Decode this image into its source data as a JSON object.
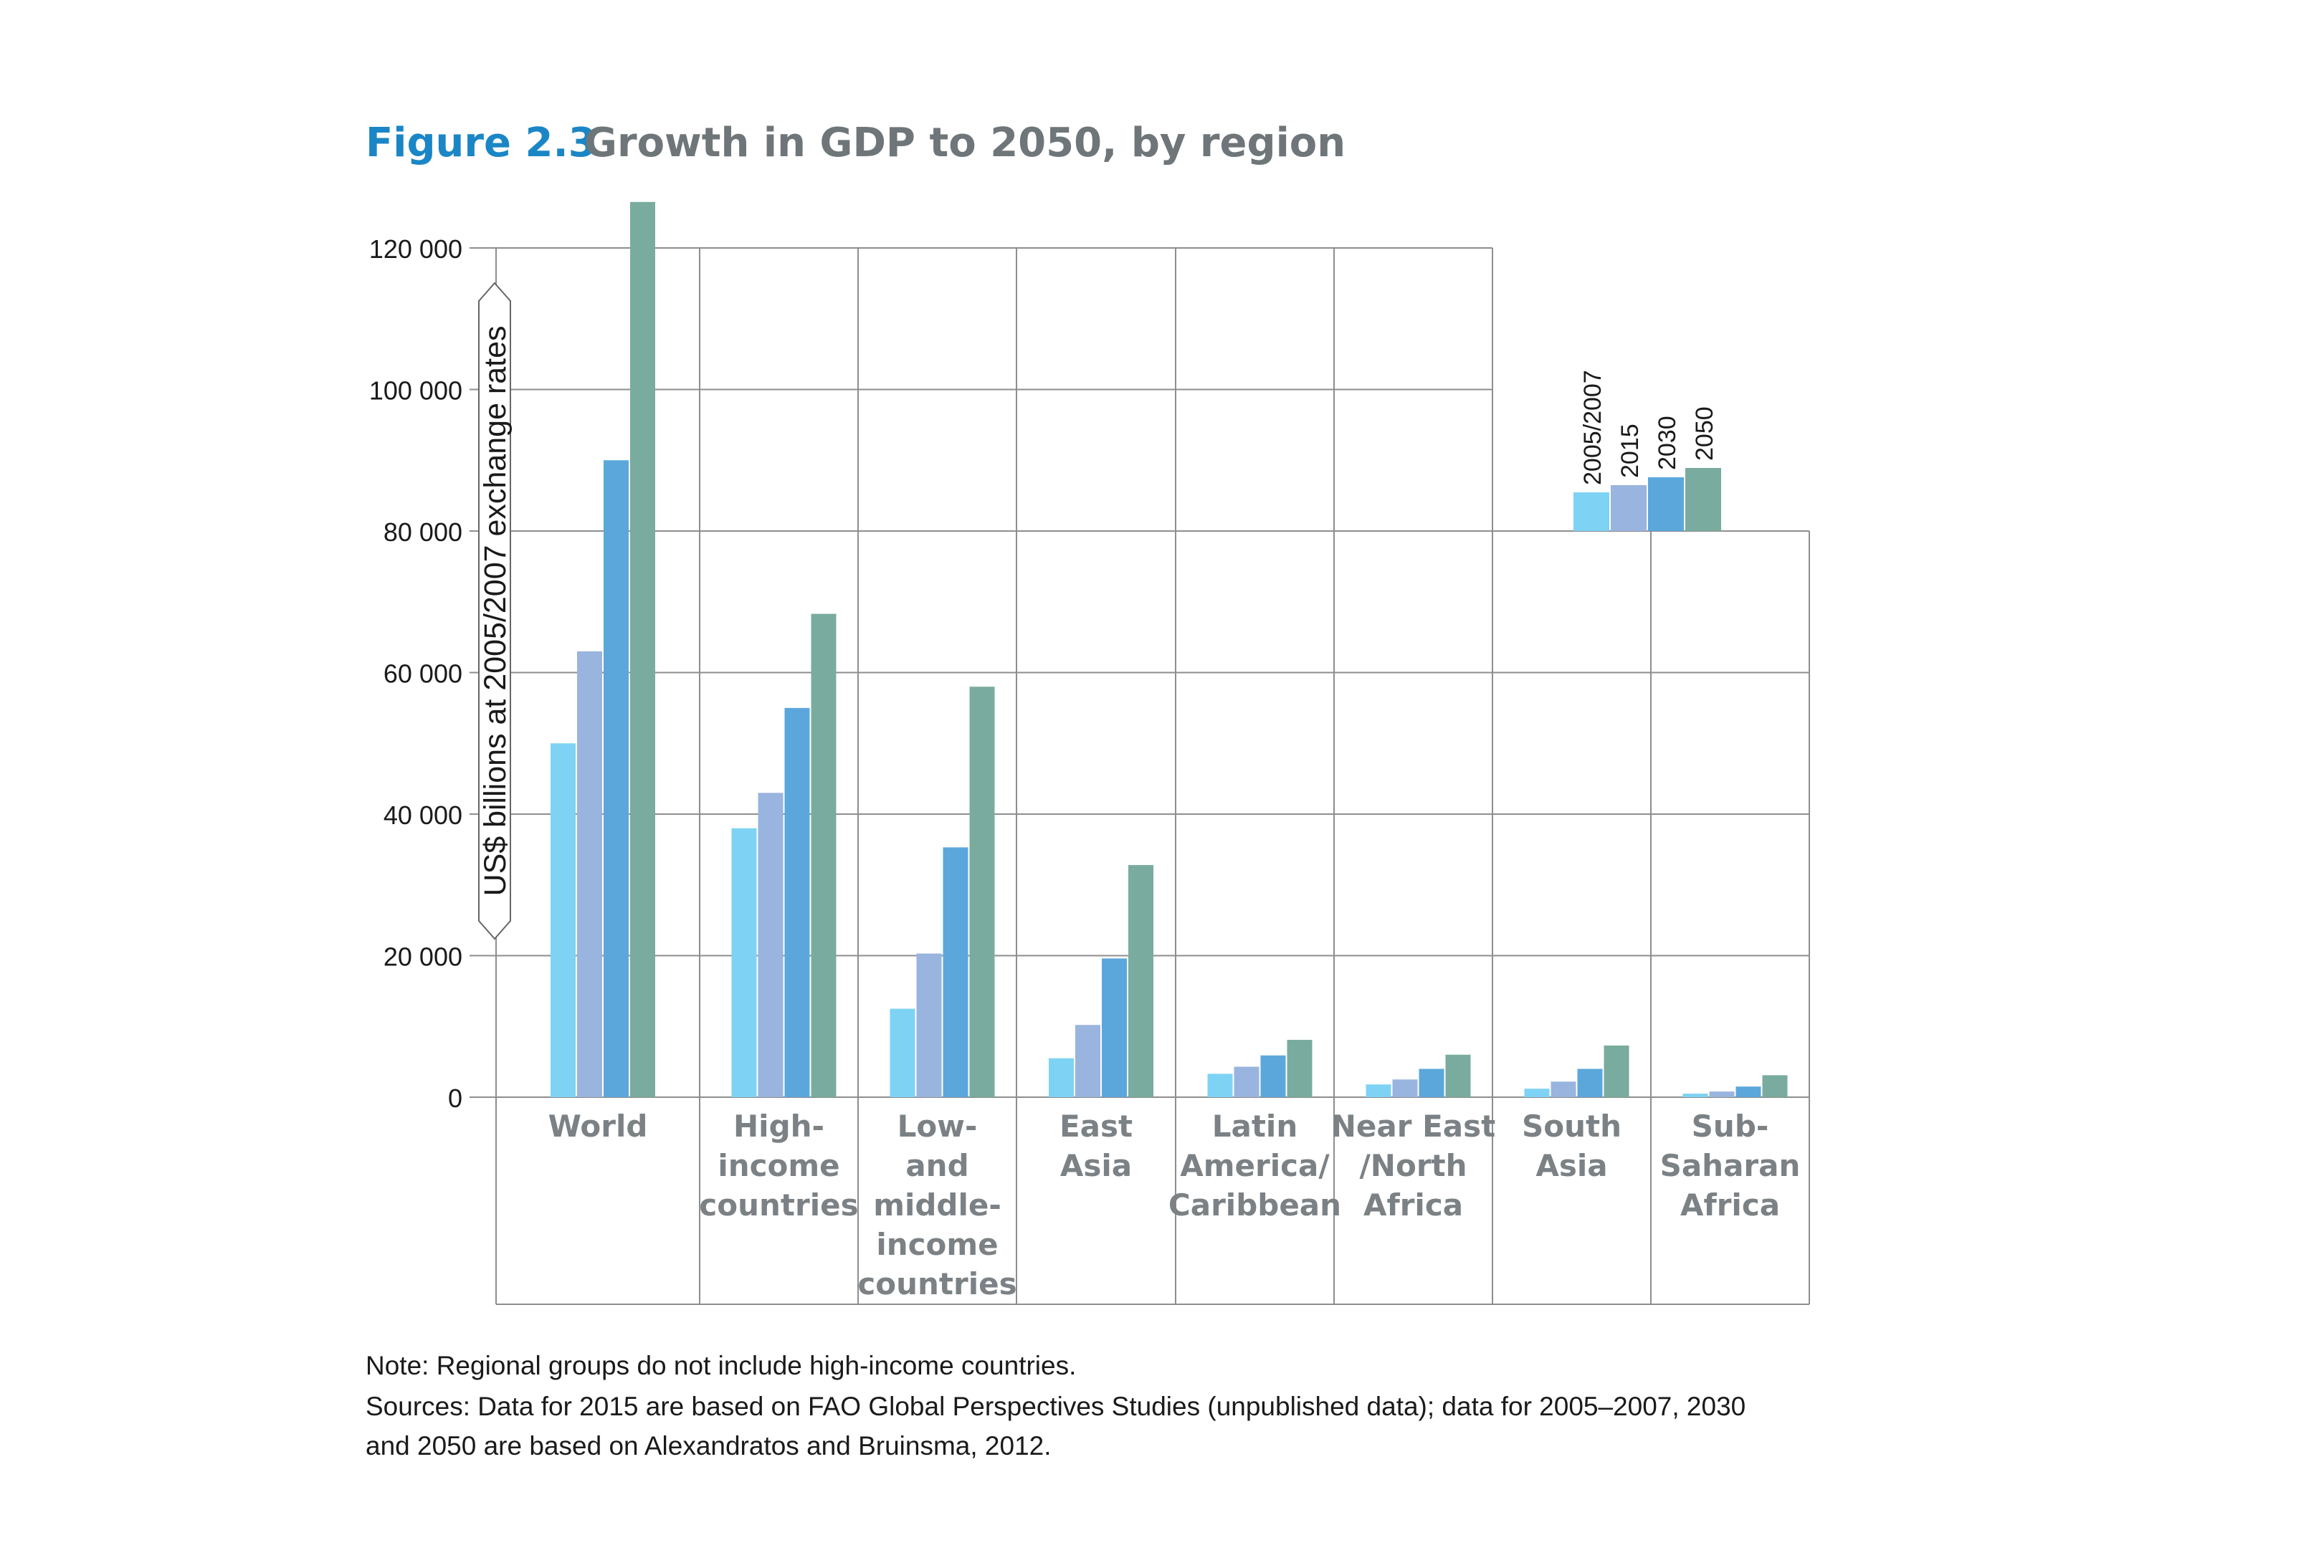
{
  "figure": {
    "number": "Figure 2.3",
    "title": "Growth in GDP to 2050, by region"
  },
  "notes": {
    "line1": "Note: Regional groups do not include high-income countries.",
    "line2": "Sources: Data for 2015 are based on FAO Global Perspectives Studies (unpublished data); data for 2005–2007, 2030",
    "line3": "and 2050 are based on Alexandratos and Bruinsma, 2012."
  },
  "colors": {
    "2005/2007": "#7ed3f4",
    "2015": "#99b4de",
    "2030": "#5ba7dc",
    "2050": "#79ac9e"
  },
  "chart_data": {
    "type": "bar",
    "ylabel": "US$ billions at 2005/2007 exchange rates",
    "ylim": [
      0,
      120000
    ],
    "yticks": [
      0,
      20000,
      40000,
      60000,
      80000,
      100000,
      120000
    ],
    "ytick_labels": [
      "0",
      "20 000",
      "40 000",
      "60 000",
      "80 000",
      "100 000",
      "120 000"
    ],
    "grid": true,
    "legend_position": "top-right",
    "categories": [
      [
        "World"
      ],
      [
        "High-",
        "income",
        "countries"
      ],
      [
        "Low-",
        "and",
        "middle-",
        "income",
        "countries"
      ],
      [
        "East",
        "Asia"
      ],
      [
        "Latin",
        "America/",
        "Caribbean"
      ],
      [
        "Near East",
        "/North",
        "Africa"
      ],
      [
        "South",
        "Asia"
      ],
      [
        "Sub-",
        "Saharan",
        "Africa"
      ]
    ],
    "series": [
      {
        "name": "2005/2007",
        "values": [
          50000,
          38000,
          12500,
          5500,
          3300,
          1800,
          1200,
          500
        ]
      },
      {
        "name": "2015",
        "values": [
          63000,
          43000,
          20300,
          10200,
          4300,
          2500,
          2200,
          800
        ]
      },
      {
        "name": "2030",
        "values": [
          90000,
          55000,
          35300,
          19600,
          5900,
          4000,
          4000,
          1500
        ]
      },
      {
        "name": "2050",
        "values": [
          126500,
          68300,
          58000,
          32800,
          8100,
          6000,
          7300,
          3100
        ]
      }
    ]
  }
}
